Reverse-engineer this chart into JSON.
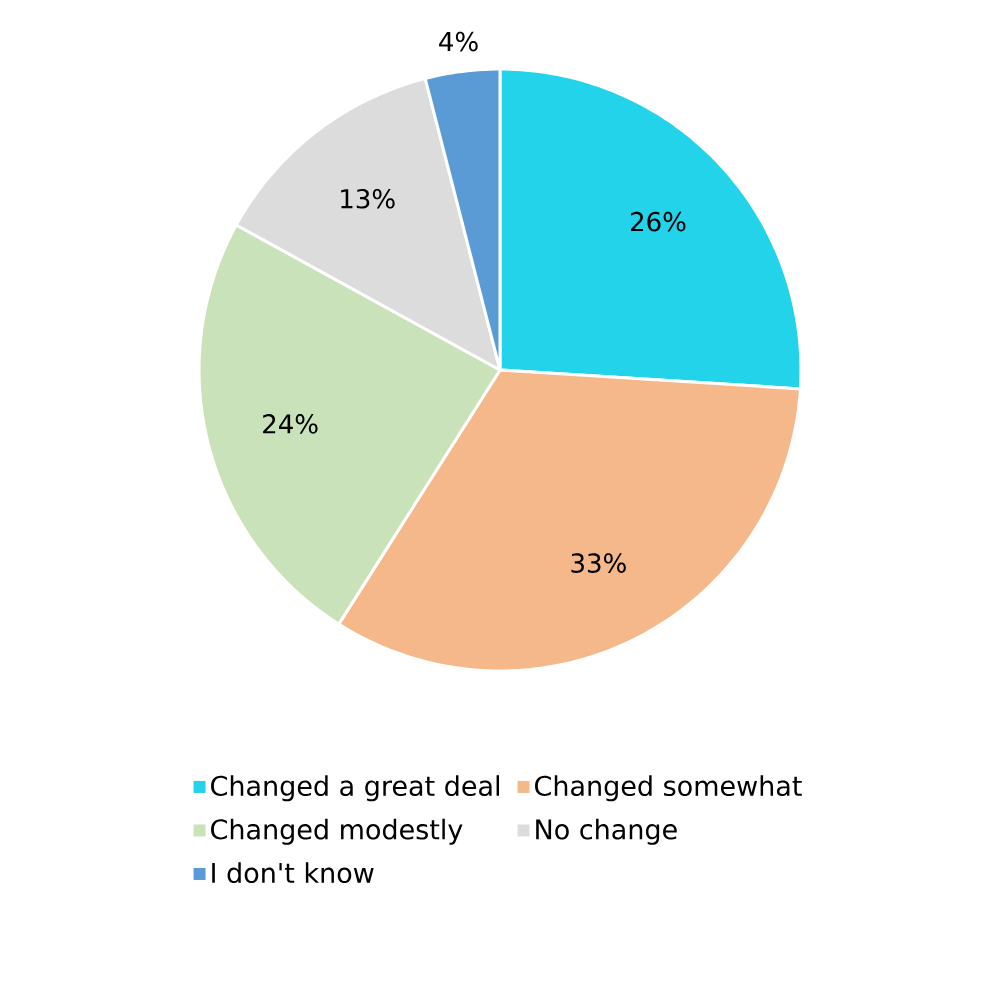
{
  "chart_data": {
    "type": "pie",
    "categories": [
      "Changed a great deal",
      "Changed somewhat",
      "Changed modestly",
      "No change",
      "I don't know"
    ],
    "values": [
      26,
      33,
      24,
      13,
      4
    ],
    "value_labels": [
      "26%",
      "33%",
      "24%",
      "13%",
      "4%"
    ],
    "colors": [
      "#22d3ea",
      "#f5b88b",
      "#c9e2b9",
      "#dcdcdc",
      "#5b9bd5"
    ],
    "legend": "bottom"
  }
}
